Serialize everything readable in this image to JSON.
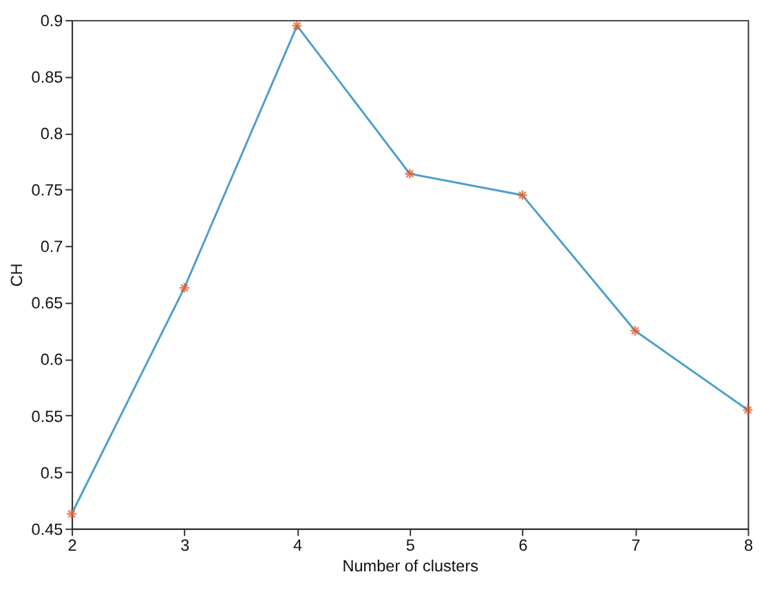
{
  "chart_data": {
    "type": "line",
    "xlabel": "Number of clusters",
    "ylabel": "CH",
    "x": [
      2,
      3,
      4,
      5,
      6,
      7,
      8
    ],
    "series": [
      {
        "color": "#4d9fc9",
        "colors": [
          "#e8531f",
          "#e8531f",
          "#e8531f",
          "#e8531f",
          "#e8531f",
          "#e8531f",
          "#e8531f"
        ],
        "values": [
          0.463,
          0.663,
          0.895,
          0.764,
          0.745,
          0.625,
          0.555
        ]
      }
    ],
    "xlim": [
      2,
      8
    ],
    "xticks": [
      2,
      3,
      4,
      5,
      6,
      7,
      8
    ],
    "ylim": [
      0.45,
      0.9
    ],
    "yticks": [
      0.45,
      0.5,
      0.55,
      0.6,
      0.65,
      0.7,
      0.75,
      0.8,
      0.85,
      0.9
    ],
    "marker": "cross",
    "line_style": "solid",
    "grid": false
  }
}
